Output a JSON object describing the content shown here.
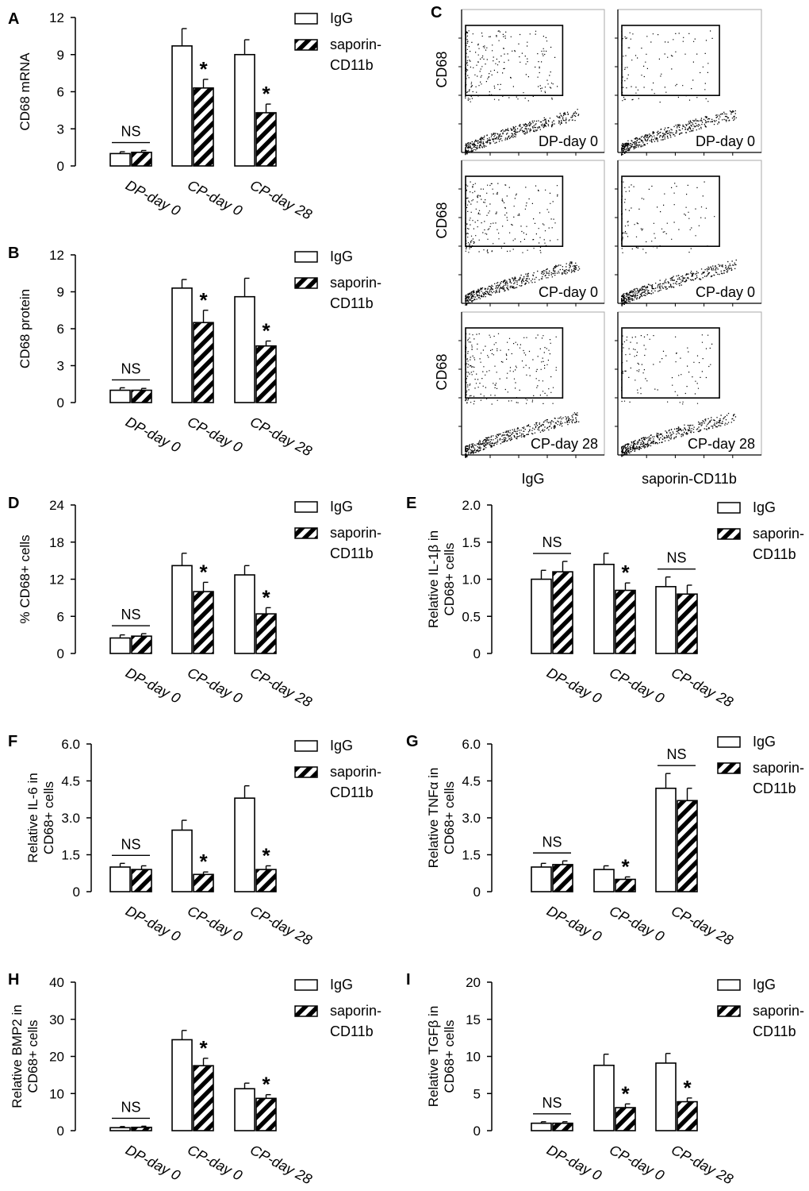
{
  "colors": {
    "ink": "#000000",
    "background": "#ffffff",
    "igg_fill": "#ffffff",
    "saporin_fill": "hatched-black"
  },
  "legend": {
    "igg": "IgG",
    "saporin_line1": "saporin-",
    "saporin_line2": "CD11b"
  },
  "flow": {
    "letter": "C",
    "ylabel": "CD68",
    "col_labels": [
      "IgG",
      "saporin-CD11b"
    ],
    "row_labels": [
      "DP-day 0",
      "CP-day 0",
      "CP-day 28"
    ]
  },
  "chart_data": [
    {
      "id": "A",
      "letter": "A",
      "type": "bar",
      "ylabel": "CD68 mRNA",
      "ylim": [
        0,
        12
      ],
      "yticks": [
        "0",
        "3",
        "6",
        "9",
        "12"
      ],
      "categories": [
        "DP-day 0",
        "CP-day 0",
        "CP-day 28"
      ],
      "series": [
        {
          "name": "IgG",
          "values": [
            1.0,
            9.7,
            9.0
          ],
          "errors": [
            0.15,
            1.4,
            1.2
          ]
        },
        {
          "name": "saporin-CD11b",
          "values": [
            1.1,
            6.3,
            4.3
          ],
          "errors": [
            0.15,
            0.7,
            0.7
          ]
        }
      ],
      "annotations": [
        "NS",
        "*",
        "*"
      ]
    },
    {
      "id": "B",
      "letter": "B",
      "type": "bar",
      "ylabel": "CD68 protein",
      "ylim": [
        0,
        12
      ],
      "yticks": [
        "0",
        "3",
        "6",
        "9",
        "12"
      ],
      "categories": [
        "DP-day 0",
        "CP-day 0",
        "CP-day 28"
      ],
      "series": [
        {
          "name": "IgG",
          "values": [
            1.0,
            9.3,
            8.6
          ],
          "errors": [
            0.2,
            0.7,
            1.5
          ]
        },
        {
          "name": "saporin-CD11b",
          "values": [
            1.0,
            6.5,
            4.6
          ],
          "errors": [
            0.15,
            1.0,
            0.4
          ]
        }
      ],
      "annotations": [
        "NS",
        "*",
        "*"
      ]
    },
    {
      "id": "D",
      "letter": "D",
      "type": "bar",
      "ylabel": "% CD68+ cells",
      "ylim": [
        0,
        24
      ],
      "yticks": [
        "0",
        "6",
        "12",
        "18",
        "24"
      ],
      "categories": [
        "DP-day 0",
        "CP-day 0",
        "CP-day 28"
      ],
      "series": [
        {
          "name": "IgG",
          "values": [
            2.5,
            14.2,
            12.7
          ],
          "errors": [
            0.5,
            2.0,
            1.5
          ]
        },
        {
          "name": "saporin-CD11b",
          "values": [
            2.8,
            10.0,
            6.4
          ],
          "errors": [
            0.4,
            1.5,
            1.0
          ]
        }
      ],
      "annotations": [
        "NS",
        "*",
        "*"
      ]
    },
    {
      "id": "E",
      "letter": "E",
      "type": "bar",
      "ylabel": "Relative IL-1β in CD68+ cells",
      "ylim": [
        0,
        2.0
      ],
      "yticks": [
        "0",
        "0.5",
        "1.0",
        "1.5",
        "2.0"
      ],
      "categories": [
        "DP-day 0",
        "CP-day 0",
        "CP-day 28"
      ],
      "series": [
        {
          "name": "IgG",
          "values": [
            1.0,
            1.2,
            0.9
          ],
          "errors": [
            0.12,
            0.15,
            0.13
          ]
        },
        {
          "name": "saporin-CD11b",
          "values": [
            1.1,
            0.85,
            0.8
          ],
          "errors": [
            0.14,
            0.1,
            0.12
          ]
        }
      ],
      "annotations": [
        "NS",
        "*",
        "NS"
      ]
    },
    {
      "id": "F",
      "letter": "F",
      "type": "bar",
      "ylabel": "Relative IL-6 in CD68+ cells",
      "ylim": [
        0,
        6.0
      ],
      "yticks": [
        "0",
        "1.5",
        "3.0",
        "4.5",
        "6.0"
      ],
      "categories": [
        "DP-day 0",
        "CP-day 0",
        "CP-day 28"
      ],
      "series": [
        {
          "name": "IgG",
          "values": [
            1.0,
            2.5,
            3.8
          ],
          "errors": [
            0.15,
            0.4,
            0.5
          ]
        },
        {
          "name": "saporin-CD11b",
          "values": [
            0.9,
            0.7,
            0.9
          ],
          "errors": [
            0.15,
            0.1,
            0.15
          ]
        }
      ],
      "annotations": [
        "NS",
        "*",
        "*"
      ]
    },
    {
      "id": "G",
      "letter": "G",
      "type": "bar",
      "ylabel": "Relative TNFα in CD68+ cells",
      "ylim": [
        0,
        6.0
      ],
      "yticks": [
        "0",
        "1.5",
        "3.0",
        "4.5",
        "6.0"
      ],
      "categories": [
        "DP-day 0",
        "CP-day 0",
        "CP-day 28"
      ],
      "series": [
        {
          "name": "IgG",
          "values": [
            1.0,
            0.9,
            4.2
          ],
          "errors": [
            0.15,
            0.15,
            0.6
          ]
        },
        {
          "name": "saporin-CD11b",
          "values": [
            1.1,
            0.5,
            3.7
          ],
          "errors": [
            0.15,
            0.1,
            0.5
          ]
        }
      ],
      "annotations": [
        "NS",
        "*",
        "NS"
      ]
    },
    {
      "id": "H",
      "letter": "H",
      "type": "bar",
      "ylabel": "Relative BMP2 in CD68+ cells",
      "ylim": [
        0,
        40
      ],
      "yticks": [
        "0",
        "10",
        "20",
        "30",
        "40"
      ],
      "categories": [
        "DP-day 0",
        "CP-day 0",
        "CP-day 28"
      ],
      "series": [
        {
          "name": "IgG",
          "values": [
            0.8,
            24.5,
            11.3
          ],
          "errors": [
            0.3,
            2.5,
            1.5
          ]
        },
        {
          "name": "saporin-CD11b",
          "values": [
            0.9,
            17.5,
            8.7
          ],
          "errors": [
            0.3,
            2.0,
            1.0
          ]
        }
      ],
      "annotations": [
        "NS",
        "*",
        "*"
      ]
    },
    {
      "id": "I",
      "letter": "I",
      "type": "bar",
      "ylabel": "Relative TGFβ in CD68+ cells",
      "ylim": [
        0,
        20
      ],
      "yticks": [
        "0",
        "5",
        "10",
        "15",
        "20"
      ],
      "categories": [
        "DP-day 0",
        "CP-day 0",
        "CP-day 28"
      ],
      "series": [
        {
          "name": "IgG",
          "values": [
            1.0,
            8.8,
            9.1
          ],
          "errors": [
            0.2,
            1.5,
            1.3
          ]
        },
        {
          "name": "saporin-CD11b",
          "values": [
            1.0,
            3.1,
            3.9
          ],
          "errors": [
            0.2,
            0.5,
            0.5
          ]
        }
      ],
      "annotations": [
        "NS",
        "*",
        "*"
      ]
    }
  ]
}
